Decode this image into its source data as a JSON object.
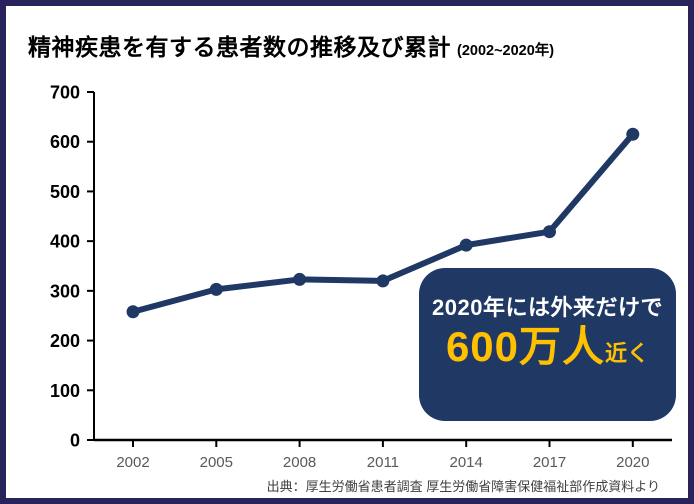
{
  "frame": {
    "border_color": "#29235c",
    "background": "#ffffff"
  },
  "header": {
    "title": "精神疾患を有する患者数の推移及び累計",
    "subtitle": "(2002~2020年)"
  },
  "chart_data": {
    "type": "line",
    "categories": [
      "2002",
      "2005",
      "2008",
      "2011",
      "2014",
      "2017",
      "2020"
    ],
    "series": [
      {
        "name": "精神疾患を有する患者数(万人)",
        "values": [
          258,
          303,
          323,
          320,
          392,
          419,
          615
        ]
      }
    ],
    "title": "精神疾患を有する患者数の推移及び累計 (2002~2020年)",
    "xlabel": "",
    "ylabel": "",
    "ylim": [
      0,
      700
    ],
    "ytick_step": 100,
    "grid": false,
    "legend": "none",
    "line_color": "#1f3864",
    "marker_color": "#1f3864",
    "axis_color": "#000000",
    "ytick_label_color": "#000000",
    "xtick_label_color": "#595959"
  },
  "annotation": {
    "line1": "2020年には外来だけで",
    "value": "600万人",
    "suffix": "近く",
    "bg_color": "#203864",
    "text_color": "#ffffff",
    "value_color": "#ffc000"
  },
  "footer": {
    "source": "出典：厚生労働省患者調査  厚生労働省障害保健福祉部作成資料より"
  }
}
